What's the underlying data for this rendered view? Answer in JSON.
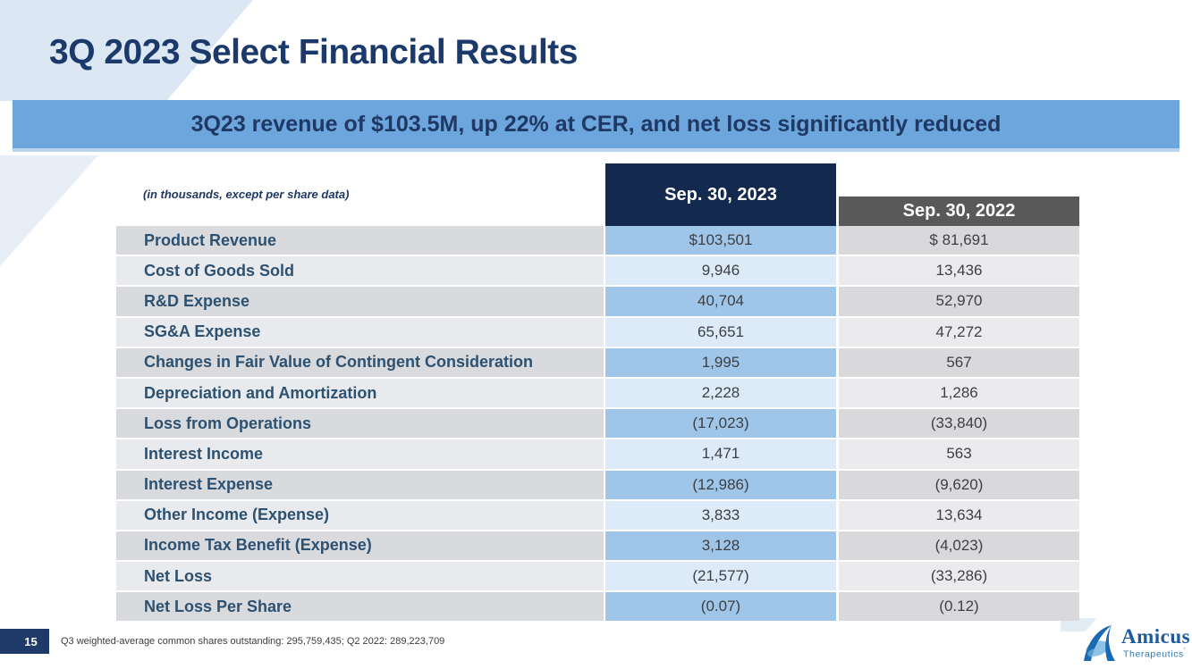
{
  "slide": {
    "title": "3Q 2023 Select Financial Results",
    "banner": "3Q23 revenue of $103.5M, up 22% at CER, and net loss significantly reduced",
    "page_number": "15",
    "footnote": "Q3 weighted-average common shares outstanding: 295,759,435; Q2 2022: 289,223,709"
  },
  "table": {
    "note": "(in thousands, except per share data)",
    "columns": [
      "Sep. 30, 2023",
      "Sep. 30, 2022"
    ],
    "rows": [
      {
        "label": "Product Revenue",
        "v2023": "$103,501",
        "v2022": "$ 81,691"
      },
      {
        "label": "Cost of Goods Sold",
        "v2023": "9,946",
        "v2022": "13,436"
      },
      {
        "label": "R&D Expense",
        "v2023": "40,704",
        "v2022": "52,970"
      },
      {
        "label": "SG&A Expense",
        "v2023": "65,651",
        "v2022": "47,272"
      },
      {
        "label": "Changes in Fair Value of Contingent Consideration",
        "v2023": "1,995",
        "v2022": "567"
      },
      {
        "label": "Depreciation and Amortization",
        "v2023": "2,228",
        "v2022": "1,286"
      },
      {
        "label": "Loss from Operations",
        "v2023": "(17,023)",
        "v2022": "(33,840)"
      },
      {
        "label": "Interest Income",
        "v2023": "1,471",
        "v2022": "563"
      },
      {
        "label": "Interest Expense",
        "v2023": "(12,986)",
        "v2022": "(9,620)"
      },
      {
        "label": "Other Income (Expense)",
        "v2023": "3,833",
        "v2022": "13,634"
      },
      {
        "label": "Income Tax Benefit (Expense)",
        "v2023": "3,128",
        "v2022": "(4,023)"
      },
      {
        "label": "Net Loss",
        "v2023": "(21,577)",
        "v2022": "(33,286)"
      },
      {
        "label": "Net Loss Per Share",
        "v2023": "(0.07)",
        "v2022": "(0.12)"
      }
    ]
  },
  "logo": {
    "name": "Amicus",
    "sub": "Therapeutics",
    "mark": "’"
  },
  "colors": {
    "navyTitle": "#1b3a6b",
    "navyText": "#1f3864",
    "bannerBlue": "#6ca6dd",
    "bannerEdge": "#b9d3ee",
    "wedgeTop": "#dbe7f3",
    "wedgeBottom": "#e7eef7",
    "wedgeBottomLight": "#f2f6fb",
    "headerNavy": "#13294d",
    "headerGray": "#595959",
    "labelText": "#2d5170",
    "valueText": "#3d3f42",
    "rowLabelDark": "#d8dade",
    "rowLabelLight": "#e8eaed",
    "row2023Dark": "#9fc5e8",
    "row2023Light": "#ddeaf8",
    "row2022Dark": "#d9d9db",
    "row2022Light": "#ebebed",
    "pageBox": "#1d3a68",
    "logoDark": "#1d5a9e",
    "logoLight": "#2d7ab8",
    "logoMark": "#1a6ab2",
    "logoMarkLight": "#90c2e5"
  }
}
